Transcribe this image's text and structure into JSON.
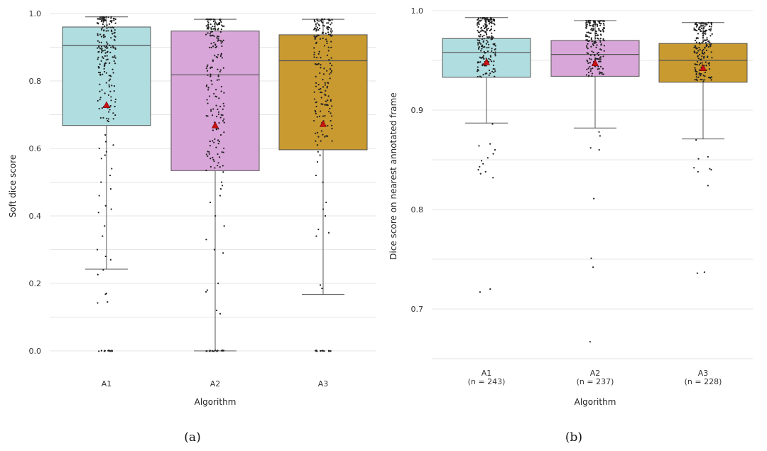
{
  "chart_data": [
    {
      "type": "box",
      "panel_label": "(a)",
      "xlabel": "Algorithm",
      "ylabel": "Soft dice score",
      "ylim": [
        0.0,
        1.0
      ],
      "yticks": [
        "0.0",
        "0.2",
        "0.4",
        "0.6",
        "0.8",
        "1.0"
      ],
      "grid": true,
      "categories": [
        "A1",
        "A2",
        "A3"
      ],
      "category_sublabels": [
        "",
        "",
        ""
      ],
      "colors": [
        "#b0dde0",
        "#d9a6d9",
        "#c99a30"
      ],
      "mean_marker_color": "#cc1111",
      "boxes": [
        {
          "name": "A1",
          "q1": 0.668,
          "median": 0.905,
          "q3": 0.96,
          "whisker_low": 0.242,
          "whisker_high": 0.99,
          "mean": 0.728,
          "n": 243,
          "zeros": 12,
          "low_points": [
            0.68,
            0.64,
            0.62,
            0.61,
            0.6,
            0.59,
            0.58,
            0.57,
            0.54,
            0.52,
            0.5,
            0.48,
            0.46,
            0.43,
            0.42,
            0.41,
            0.37,
            0.34,
            0.3,
            0.28,
            0.27,
            0.24,
            0.226,
            0.17,
            0.168,
            0.145,
            0.142
          ]
        },
        {
          "name": "A2",
          "q1": 0.534,
          "median": 0.818,
          "q3": 0.948,
          "whisker_low": 0.0,
          "whisker_high": 0.983,
          "mean": 0.668,
          "n": 237,
          "zeros": 14,
          "low_points": [
            0.53,
            0.5,
            0.49,
            0.48,
            0.46,
            0.44,
            0.4,
            0.37,
            0.33,
            0.3,
            0.29,
            0.2,
            0.18,
            0.175,
            0.12,
            0.11
          ]
        },
        {
          "name": "A3",
          "q1": 0.596,
          "median": 0.86,
          "q3": 0.937,
          "whisker_low": 0.167,
          "whisker_high": 0.983,
          "mean": 0.672,
          "n": 228,
          "zeros": 13,
          "low_points": [
            0.59,
            0.58,
            0.56,
            0.52,
            0.5,
            0.44,
            0.42,
            0.4,
            0.36,
            0.35,
            0.34,
            0.195,
            0.185
          ]
        }
      ]
    },
    {
      "type": "box",
      "panel_label": "(b)",
      "xlabel": "Algorithm",
      "ylabel": "Dice score on nearest annotated frame",
      "ylim": [
        0.65,
        1.0
      ],
      "yticks": [
        "0.7",
        "0.8",
        "0.9",
        "1.0"
      ],
      "grid": true,
      "categories": [
        "A1",
        "A2",
        "A3"
      ],
      "category_sublabels": [
        "(n = 243)",
        "(n = 237)",
        "(n = 228)"
      ],
      "colors": [
        "#b0dde0",
        "#d9a6d9",
        "#c99a30"
      ],
      "mean_marker_color": "#cc1111",
      "boxes": [
        {
          "name": "A1",
          "q1": 0.933,
          "median": 0.958,
          "q3": 0.972,
          "whisker_low": 0.887,
          "whisker_high": 0.993,
          "mean": 0.948,
          "n": 243,
          "zeros": 0,
          "low_points": [
            0.886,
            0.866,
            0.864,
            0.86,
            0.856,
            0.852,
            0.849,
            0.846,
            0.843,
            0.84,
            0.838,
            0.836,
            0.832,
            0.72,
            0.717
          ]
        },
        {
          "name": "A2",
          "q1": 0.934,
          "median": 0.956,
          "q3": 0.97,
          "whisker_low": 0.882,
          "whisker_high": 0.99,
          "mean": 0.947,
          "n": 237,
          "zeros": 0,
          "low_points": [
            0.878,
            0.874,
            0.862,
            0.86,
            0.811,
            0.751,
            0.742,
            0.667
          ]
        },
        {
          "name": "A3",
          "q1": 0.928,
          "median": 0.95,
          "q3": 0.967,
          "whisker_low": 0.871,
          "whisker_high": 0.988,
          "mean": 0.942,
          "n": 228,
          "zeros": 0,
          "low_points": [
            0.87,
            0.853,
            0.851,
            0.842,
            0.841,
            0.84,
            0.838,
            0.824,
            0.737,
            0.736
          ]
        }
      ]
    }
  ]
}
